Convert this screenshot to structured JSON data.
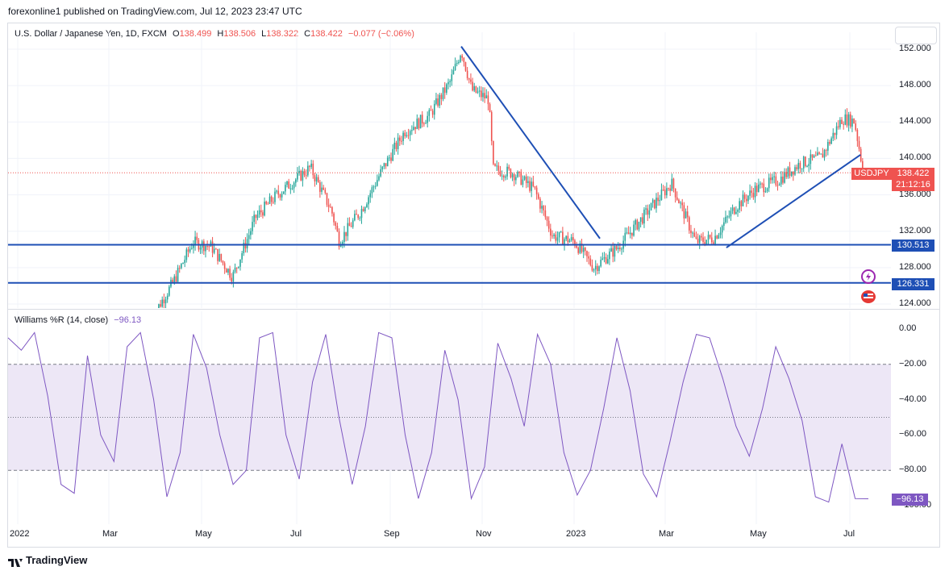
{
  "header": {
    "publisher": "forexonline1 published on TradingView.com, Jul 12, 2023 23:47 UTC"
  },
  "legend": {
    "symbol": "U.S. Dollar / Japanese Yen, 1D, FXCM",
    "o_label": "O",
    "o_value": "138.499",
    "h_label": "H",
    "h_value": "138.506",
    "l_label": "L",
    "l_value": "138.322",
    "c_label": "C",
    "c_value": "138.422",
    "change": "−0.077 (−0.06%)"
  },
  "indicator": {
    "name": "Williams %R (14, close)",
    "value": "−96.13"
  },
  "price_axis": [
    "152.000",
    "148.000",
    "144.000",
    "140.000",
    "136.000",
    "132.000",
    "128.000",
    "124.000"
  ],
  "indicator_axis": [
    "0.00",
    "−20.00",
    "−40.00",
    "−60.00",
    "−80.00",
    "−100.00"
  ],
  "time_axis": [
    "2022",
    "Mar",
    "May",
    "Jul",
    "Sep",
    "Nov",
    "2023",
    "Mar",
    "May",
    "Jul"
  ],
  "tags": {
    "symbol": "USDJPY",
    "price": "138.422",
    "countdown": "21:12:16",
    "level_upper": "130.513",
    "level_lower": "126.331",
    "wr_value": "−96.13"
  },
  "footer": {
    "brand": "TradingView"
  },
  "colors": {
    "up": "#26a69a",
    "down": "#ef5350",
    "line": "#1e4fb5",
    "wr": "#7e57c2",
    "wr_band": "#ede7f6"
  },
  "chart_data": [
    {
      "type": "candlestick",
      "title": "U.S. Dollar / Japanese Yen, 1D, FXCM",
      "x_range": [
        "2022-01-01",
        "2023-07-12"
      ],
      "ylim": [
        124,
        153
      ],
      "close_series": [
        {
          "date": "2022-04-01",
          "close": 122.5
        },
        {
          "date": "2022-04-15",
          "close": 126.4
        },
        {
          "date": "2022-04-28",
          "close": 130.8
        },
        {
          "date": "2022-05-10",
          "close": 130.3
        },
        {
          "date": "2022-05-24",
          "close": 127.0
        },
        {
          "date": "2022-06-08",
          "close": 133.5
        },
        {
          "date": "2022-06-22",
          "close": 136.0
        },
        {
          "date": "2022-07-14",
          "close": 139.0
        },
        {
          "date": "2022-07-28",
          "close": 134.2
        },
        {
          "date": "2022-08-02",
          "close": 130.9
        },
        {
          "date": "2022-08-16",
          "close": 134.2
        },
        {
          "date": "2022-08-31",
          "close": 139.0
        },
        {
          "date": "2022-09-14",
          "close": 143.0
        },
        {
          "date": "2022-09-30",
          "close": 144.7
        },
        {
          "date": "2022-10-14",
          "close": 148.5
        },
        {
          "date": "2022-10-21",
          "close": 151.9
        },
        {
          "date": "2022-10-28",
          "close": 147.5
        },
        {
          "date": "2022-11-08",
          "close": 146.5
        },
        {
          "date": "2022-11-11",
          "close": 138.8
        },
        {
          "date": "2022-11-24",
          "close": 138.4
        },
        {
          "date": "2022-12-08",
          "close": 136.6
        },
        {
          "date": "2022-12-20",
          "close": 131.5
        },
        {
          "date": "2023-01-03",
          "close": 130.9
        },
        {
          "date": "2023-01-16",
          "close": 128.0
        },
        {
          "date": "2023-01-31",
          "close": 130.1
        },
        {
          "date": "2023-02-14",
          "close": 132.9
        },
        {
          "date": "2023-03-08",
          "close": 137.3
        },
        {
          "date": "2023-03-24",
          "close": 130.8
        },
        {
          "date": "2023-04-05",
          "close": 131.3
        },
        {
          "date": "2023-04-19",
          "close": 134.7
        },
        {
          "date": "2023-05-02",
          "close": 136.6
        },
        {
          "date": "2023-05-17",
          "close": 137.6
        },
        {
          "date": "2023-05-31",
          "close": 139.4
        },
        {
          "date": "2023-06-14",
          "close": 140.1
        },
        {
          "date": "2023-06-28",
          "close": 144.4
        },
        {
          "date": "2023-07-06",
          "close": 144.1
        },
        {
          "date": "2023-07-12",
          "close": 138.4
        }
      ],
      "trendlines": [
        {
          "from": {
            "date": "2022-10-21",
            "price": 152.3
          },
          "to": {
            "date": "2023-01-20",
            "price": 131.2
          }
        },
        {
          "from": {
            "date": "2023-04-13",
            "price": 130.2
          },
          "to": {
            "date": "2023-07-10",
            "price": 140.4
          }
        }
      ],
      "horizontal_levels": [
        130.513,
        126.331
      ],
      "last_price": 138.422
    },
    {
      "type": "line",
      "title": "Williams %R (14, close)",
      "ylim": [
        -100,
        0
      ],
      "bands": [
        -20,
        -50,
        -80
      ],
      "series": [
        {
          "name": "Williams %R (14, close)",
          "values": [
            -5,
            -12,
            -2,
            -38,
            -88,
            -93,
            -15,
            -60,
            -75,
            -10,
            -2,
            -40,
            -95,
            -70,
            -3,
            -22,
            -60,
            -88,
            -80,
            -5,
            -2,
            -60,
            -85,
            -30,
            -3,
            -50,
            -88,
            -55,
            -2,
            -5,
            -60,
            -96,
            -70,
            -12,
            -40,
            -96,
            -78,
            -8,
            -28,
            -55,
            -3,
            -20,
            -70,
            -94,
            -80,
            -45,
            -5,
            -35,
            -82,
            -95,
            -64,
            -30,
            -3,
            -5,
            -28,
            -55,
            -72,
            -45,
            -10,
            -28,
            -52,
            -95,
            -98,
            -65,
            -96,
            -96.13
          ]
        }
      ]
    }
  ]
}
